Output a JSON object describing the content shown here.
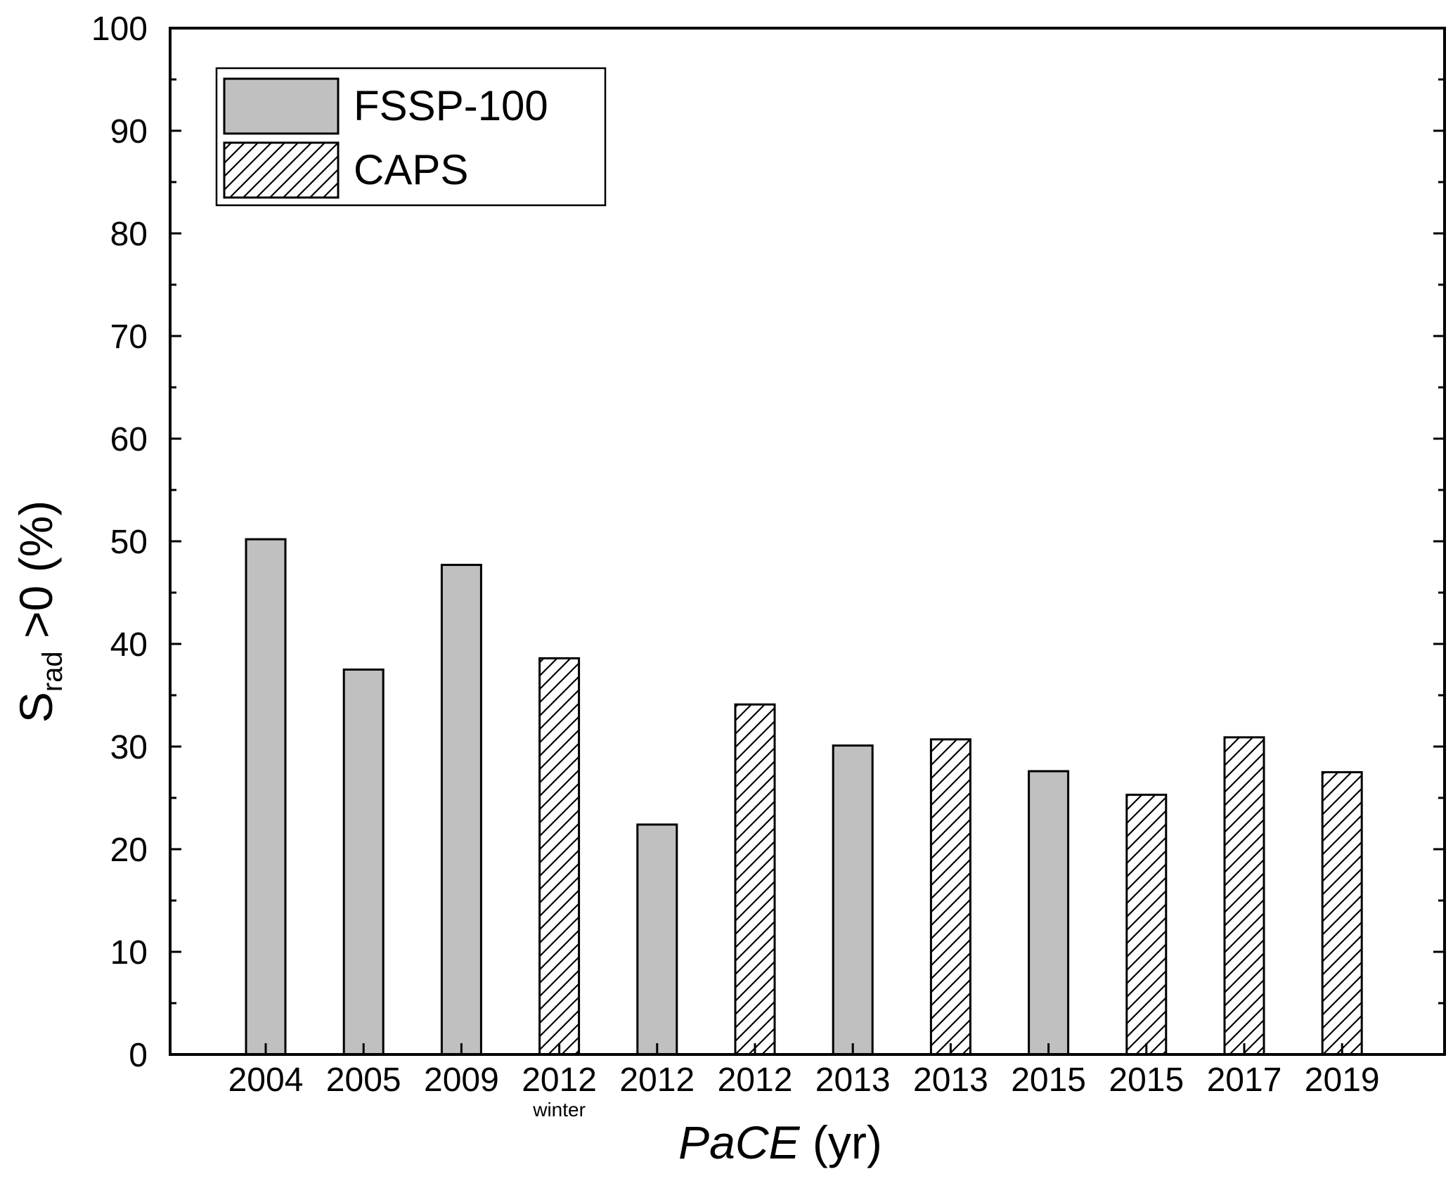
{
  "chart_data": {
    "type": "bar",
    "categories": [
      {
        "label": "2004",
        "sublabel": ""
      },
      {
        "label": "2005",
        "sublabel": ""
      },
      {
        "label": "2009",
        "sublabel": ""
      },
      {
        "label": "2012",
        "sublabel": "winter"
      },
      {
        "label": "2012",
        "sublabel": ""
      },
      {
        "label": "2012",
        "sublabel": ""
      },
      {
        "label": "2013",
        "sublabel": ""
      },
      {
        "label": "2013",
        "sublabel": ""
      },
      {
        "label": "2015",
        "sublabel": ""
      },
      {
        "label": "2015",
        "sublabel": ""
      },
      {
        "label": "2017",
        "sublabel": ""
      },
      {
        "label": "2019",
        "sublabel": ""
      }
    ],
    "values": [
      50.2,
      37.5,
      47.7,
      38.6,
      22.4,
      34.1,
      30.1,
      30.7,
      27.6,
      25.3,
      30.9,
      27.5
    ],
    "instrument": [
      "FSSP-100",
      "FSSP-100",
      "FSSP-100",
      "CAPS",
      "FSSP-100",
      "CAPS",
      "FSSP-100",
      "CAPS",
      "FSSP-100",
      "CAPS",
      "CAPS",
      "CAPS"
    ],
    "series": [
      {
        "name": "FSSP-100",
        "fill": "#c0c0c0",
        "pattern": "solid"
      },
      {
        "name": "CAPS",
        "fill": "#ffffff",
        "pattern": "hatch"
      }
    ],
    "ylim": [
      0,
      100
    ],
    "yticks": [
      0,
      10,
      20,
      30,
      40,
      50,
      60,
      70,
      80,
      90,
      100
    ],
    "ylabel": {
      "main": "S",
      "subscript": "rad",
      "suffix": " >0 (%)"
    },
    "xlabel": {
      "italic": "PaCE",
      "suffix": " (yr)"
    },
    "legend_position": "top-left",
    "grid": false
  }
}
